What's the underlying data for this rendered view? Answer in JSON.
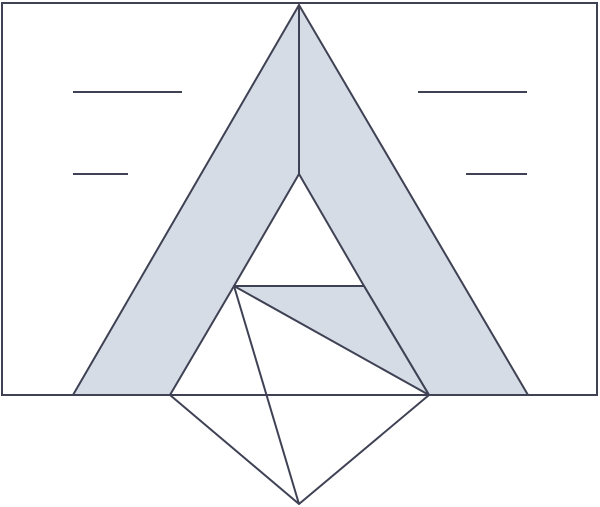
{
  "figure": {
    "colors": {
      "stroke": "#3f4254",
      "fill": "#d6dce5",
      "background": "#ffffff"
    }
  }
}
